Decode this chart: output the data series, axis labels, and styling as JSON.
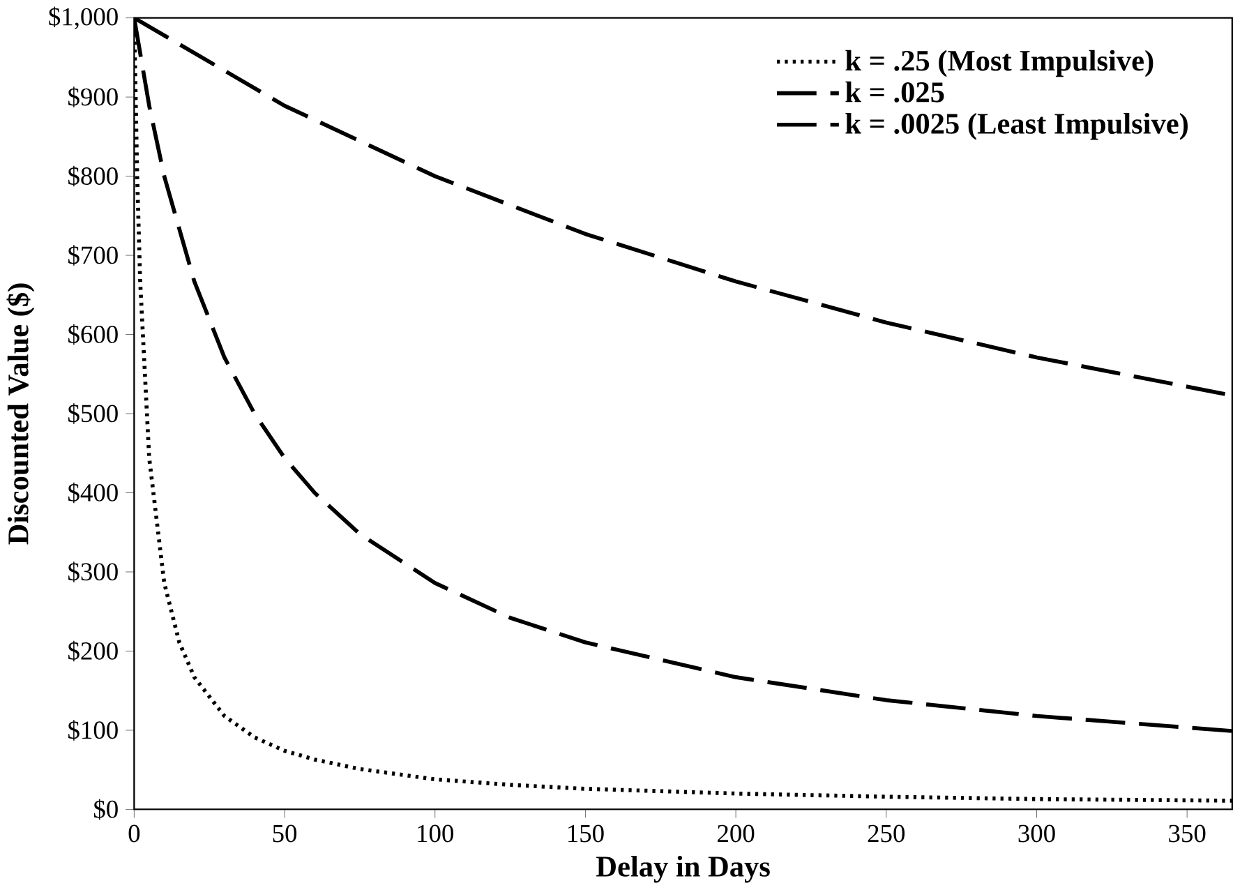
{
  "chart_data": {
    "type": "line",
    "xlabel": "Delay in Days",
    "ylabel": "Discounted Value ($)",
    "xlim": [
      0,
      365
    ],
    "xticks": [
      0,
      50,
      100,
      150,
      200,
      250,
      300,
      350
    ],
    "ylim": [
      0,
      1000
    ],
    "yticks": [
      {
        "value": 0,
        "label": "$0"
      },
      {
        "value": 100,
        "label": "$100"
      },
      {
        "value": 200,
        "label": "$200"
      },
      {
        "value": 300,
        "label": "$300"
      },
      {
        "value": 400,
        "label": "$400"
      },
      {
        "value": 500,
        "label": "$500"
      },
      {
        "value": 600,
        "label": "$600"
      },
      {
        "value": 700,
        "label": "$700"
      },
      {
        "value": 800,
        "label": "$800"
      },
      {
        "value": 900,
        "label": "$900"
      },
      {
        "value": 1000,
        "label": "$1,000"
      }
    ],
    "legend": "top right",
    "grid": false,
    "series": [
      {
        "name": "k = .25 (Most Impulsive)",
        "color": "#000000",
        "line_style": "dotted",
        "x": [
          0,
          1,
          2,
          5,
          10,
          15,
          20,
          30,
          40,
          50,
          60,
          75,
          100,
          125,
          150,
          200,
          250,
          300,
          365
        ],
        "values": [
          1000,
          800,
          667,
          444,
          286,
          211,
          167,
          118,
          91,
          74,
          63,
          51,
          38,
          31,
          26,
          20,
          16,
          13,
          11
        ]
      },
      {
        "name": "k = .025",
        "color": "#000000",
        "line_style": "dashed",
        "x": [
          0,
          5,
          10,
          20,
          30,
          40,
          50,
          60,
          75,
          100,
          125,
          150,
          200,
          250,
          300,
          365
        ],
        "values": [
          1000,
          889,
          800,
          667,
          571,
          500,
          444,
          400,
          348,
          286,
          242,
          211,
          167,
          138,
          118,
          99
        ]
      },
      {
        "name": "k = .0025 (Least Impulsive)",
        "color": "#000000",
        "line_style": "dashed",
        "x": [
          0,
          50,
          100,
          150,
          200,
          250,
          300,
          365
        ],
        "values": [
          1000,
          889,
          800,
          727,
          667,
          615,
          571,
          523
        ]
      }
    ]
  }
}
